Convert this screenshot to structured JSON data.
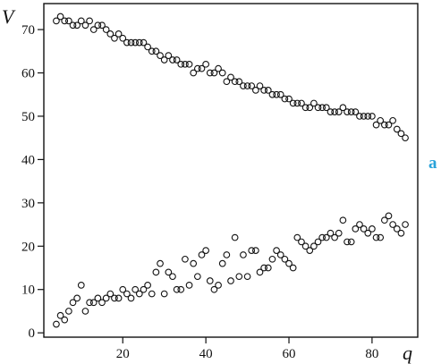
{
  "chart_data": {
    "type": "scatter",
    "ylabel": "V",
    "xlabel": "q",
    "panel_label": "a",
    "xlim": [
      1,
      91
    ],
    "ylim": [
      -1,
      76
    ],
    "xticks": [
      20,
      40,
      60,
      80
    ],
    "yticks": [
      0,
      10,
      20,
      30,
      40,
      50,
      60,
      70
    ],
    "grid": false,
    "marker": "open-circle",
    "series": [
      {
        "x": [
          4,
          5,
          6,
          7,
          8,
          9,
          10,
          11,
          12,
          13,
          14,
          15,
          16,
          17,
          18,
          19,
          20,
          21,
          22,
          23,
          24,
          25,
          26,
          27,
          28,
          29,
          30,
          31,
          32,
          33,
          34,
          35,
          36,
          37,
          38,
          39,
          40,
          41,
          42,
          43,
          44,
          45,
          46,
          47,
          48,
          49,
          50,
          51,
          52,
          53,
          54,
          55,
          56,
          57,
          58,
          59,
          60,
          61,
          62,
          63,
          64,
          65,
          66,
          67,
          68,
          69,
          70,
          71,
          72,
          73,
          74,
          75,
          76,
          77,
          78,
          79,
          80,
          81,
          82,
          83,
          84,
          85,
          86,
          87,
          88
        ],
        "y": [
          72,
          73,
          72,
          72,
          71,
          71,
          72,
          71,
          72,
          70,
          71,
          71,
          70,
          69,
          68,
          69,
          68,
          67,
          67,
          67,
          67,
          67,
          66,
          65,
          65,
          64,
          63,
          64,
          63,
          63,
          62,
          62,
          62,
          60,
          61,
          61,
          62,
          60,
          60,
          61,
          60,
          58,
          59,
          58,
          58,
          57,
          57,
          57,
          56,
          57,
          56,
          56,
          55,
          55,
          55,
          54,
          54,
          53,
          53,
          53,
          52,
          52,
          53,
          52,
          52,
          52,
          51,
          51,
          51,
          52,
          51,
          51,
          51,
          50,
          50,
          50,
          50,
          48,
          49,
          48,
          48,
          49,
          47,
          46,
          45
        ]
      },
      {
        "x": [
          4,
          5,
          6,
          7,
          8,
          9,
          10,
          11,
          12,
          13,
          14,
          15,
          16,
          17,
          18,
          19,
          20,
          21,
          22,
          23,
          24,
          25,
          26,
          27,
          28,
          29,
          30,
          31,
          32,
          33,
          34,
          35,
          36,
          37,
          38,
          39,
          40,
          41,
          42,
          43,
          44,
          45,
          46,
          47,
          48,
          49,
          50,
          51,
          52,
          53,
          54,
          55,
          56,
          57,
          58,
          59,
          60,
          61,
          62,
          63,
          64,
          65,
          66,
          67,
          68,
          69,
          70,
          71,
          72,
          73,
          74,
          75,
          76,
          77,
          78,
          79,
          80,
          81,
          82,
          83,
          84,
          85,
          86,
          87,
          88
        ],
        "y": [
          2,
          4,
          3,
          5,
          7,
          8,
          11,
          5,
          7,
          7,
          8,
          7,
          8,
          9,
          8,
          8,
          10,
          9,
          8,
          10,
          9,
          10,
          11,
          9,
          14,
          16,
          9,
          14,
          13,
          10,
          10,
          17,
          11,
          16,
          13,
          18,
          19,
          12,
          10,
          11,
          16,
          18,
          12,
          22,
          13,
          18,
          13,
          19,
          19,
          14,
          15,
          15,
          17,
          19,
          18,
          17,
          16,
          15,
          22,
          21,
          20,
          19,
          20,
          21,
          22,
          22,
          23,
          22,
          23,
          26,
          21,
          21,
          24,
          25,
          24,
          23,
          24,
          22,
          22,
          26,
          27,
          25,
          24,
          23,
          25
        ]
      }
    ]
  }
}
